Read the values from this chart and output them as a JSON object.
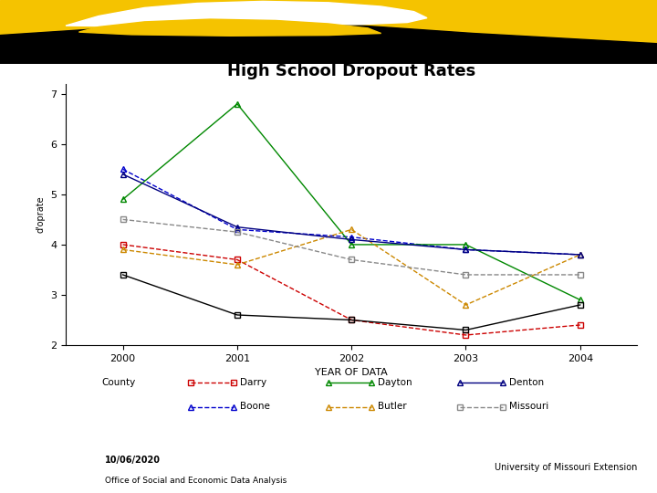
{
  "title": "High School Dropout Rates",
  "xlabel": "YEAR OF DATA",
  "ylabel": "d'oprate",
  "years": [
    2000,
    2001,
    2002,
    2003,
    2004
  ],
  "ylim": [
    2.0,
    7.2
  ],
  "xlim": [
    1999.5,
    2004.5
  ],
  "series": [
    {
      "name": "Darry",
      "color": "#cc0000",
      "linestyle": "--",
      "marker": "s",
      "markersize": 4,
      "values": [
        4.0,
        3.7,
        2.5,
        2.2,
        2.4
      ]
    },
    {
      "name": "Boone",
      "color": "#0000cc",
      "linestyle": "--",
      "marker": "^",
      "markersize": 4,
      "values": [
        5.5,
        4.3,
        4.15,
        3.9,
        3.8
      ]
    },
    {
      "name": "Dayton",
      "color": "#008800",
      "linestyle": "-",
      "marker": "^",
      "markersize": 4,
      "values": [
        4.9,
        6.8,
        4.0,
        4.0,
        2.9
      ]
    },
    {
      "name": "Butler",
      "color": "#cc8800",
      "linestyle": "--",
      "marker": "^",
      "markersize": 4,
      "values": [
        3.9,
        3.6,
        4.3,
        2.8,
        3.8
      ]
    },
    {
      "name": "Denton",
      "color": "#000080",
      "linestyle": "-",
      "marker": "^",
      "markersize": 4,
      "values": [
        5.4,
        4.35,
        4.1,
        3.9,
        3.8
      ]
    },
    {
      "name": "Missouri",
      "color": "#888888",
      "linestyle": "--",
      "marker": "s",
      "markersize": 4,
      "values": [
        4.5,
        4.25,
        3.7,
        3.4,
        3.4
      ]
    },
    {
      "name": "County",
      "color": "#000000",
      "linestyle": "-",
      "marker": "s",
      "markersize": 4,
      "values": [
        3.4,
        2.6,
        2.5,
        2.3,
        2.8
      ]
    }
  ],
  "background_color": "#ffffff",
  "yticks": [
    2,
    3,
    4,
    5,
    6,
    7
  ],
  "xticks": [
    2000,
    2001,
    2002,
    2003,
    2004
  ],
  "legend_row1": [
    {
      "label": "County",
      "color": "#000000",
      "linestyle": "-",
      "marker": "s"
    },
    {
      "label": "Darry",
      "color": "#cc0000",
      "linestyle": "--",
      "marker": "s"
    },
    {
      "label": "Dayton",
      "color": "#008800",
      "linestyle": "-",
      "marker": "^"
    },
    {
      "label": "Denton",
      "color": "#000080",
      "linestyle": "-",
      "marker": "^"
    }
  ],
  "legend_row2": [
    {
      "label": "Boone",
      "color": "#0000cc",
      "linestyle": "--",
      "marker": "^"
    },
    {
      "label": "Butler",
      "color": "#cc8800",
      "linestyle": "--",
      "marker": "^"
    },
    {
      "label": "Missouri",
      "color": "#888888",
      "linestyle": "--",
      "marker": "s"
    }
  ],
  "footer_line_color": "#ccaa00",
  "footer_text_left1": "10/06/2020",
  "footer_text_left2": "Office of Social and Economic Data Analysis",
  "footer_text_right": "University of Missouri Extension"
}
